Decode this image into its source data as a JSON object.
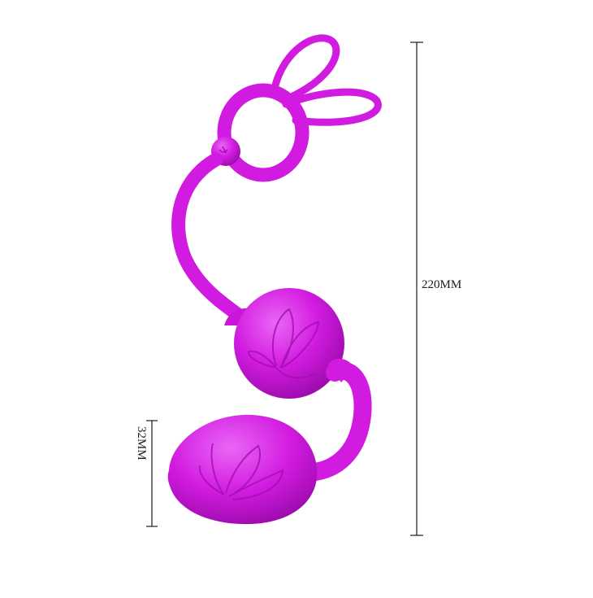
{
  "dimensions": {
    "overall_length": "220MM",
    "ball_diameter": "32MM"
  },
  "colors": {
    "product": "#d21be0",
    "product_light": "#e24bf0",
    "product_dark": "#a20fb0",
    "lines": "#1a1a1a",
    "background": "#ffffff"
  }
}
